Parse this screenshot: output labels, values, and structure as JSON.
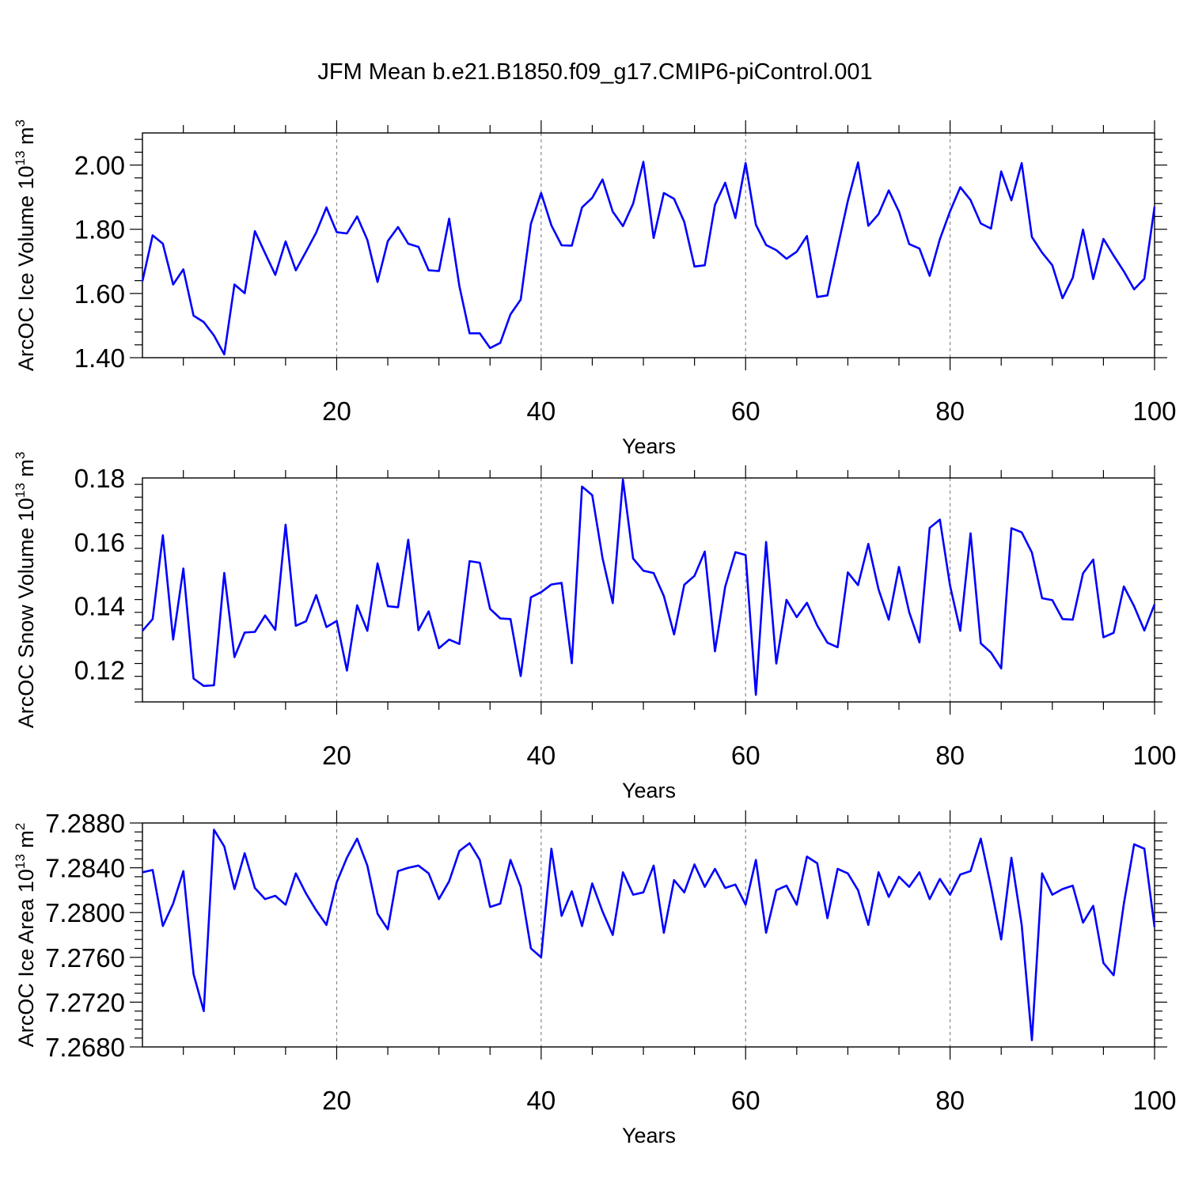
{
  "figure": {
    "title": "JFM Mean b.e21.B1850.f09_g17.CMIP6-piControl.001",
    "line_color": "#0000ff"
  },
  "chart_data": [
    {
      "type": "line",
      "title": "",
      "xlabel": "Years",
      "ylabel": "ArcOC Ice Volume 10",
      "ylabel_exp": "13",
      "ylabel_unit": " m",
      "ylabel_unit_exp": "3",
      "xlim": [
        1,
        100
      ],
      "ylim": [
        1.4,
        2.1
      ],
      "xticks": [
        20,
        40,
        60,
        80,
        100
      ],
      "yticks": [
        1.4,
        1.6,
        1.8,
        2.0
      ],
      "ytick_labels": [
        "1.40",
        "1.60",
        "1.80",
        "2.00"
      ],
      "grid": "vertical dashed at major x ticks",
      "series": [
        {
          "values": [
            1.638,
            1.781,
            1.755,
            1.628,
            1.675,
            1.531,
            1.511,
            1.469,
            1.41,
            1.628,
            1.601,
            1.794,
            1.725,
            1.658,
            1.762,
            1.672,
            1.73,
            1.79,
            1.868,
            1.791,
            1.787,
            1.84,
            1.767,
            1.636,
            1.763,
            1.807,
            1.755,
            1.745,
            1.672,
            1.67,
            1.833,
            1.623,
            1.476,
            1.476,
            1.43,
            1.446,
            1.535,
            1.581,
            1.817,
            1.913,
            1.812,
            1.75,
            1.749,
            1.868,
            1.898,
            1.955,
            1.855,
            1.81,
            1.88,
            2.01,
            1.773,
            1.913,
            1.895,
            1.823,
            1.684,
            1.688,
            1.876,
            1.945,
            1.835,
            2.006,
            1.814,
            1.751,
            1.735,
            1.708,
            1.73,
            1.779,
            1.589,
            1.594,
            1.743,
            1.888,
            2.008,
            1.811,
            1.847,
            1.921,
            1.855,
            1.754,
            1.74,
            1.655,
            1.769,
            1.856,
            1.931,
            1.891,
            1.818,
            1.802,
            1.98,
            1.89,
            2.006,
            1.776,
            1.727,
            1.688,
            1.585,
            1.649,
            1.799,
            1.645,
            1.77,
            1.718,
            1.669,
            1.613,
            1.646,
            1.87
          ]
        }
      ]
    },
    {
      "type": "line",
      "title": "",
      "xlabel": "Years",
      "ylabel": "ArcOC Snow Volume 10",
      "ylabel_exp": "13",
      "ylabel_unit": " m",
      "ylabel_unit_exp": "3",
      "xlim": [
        1,
        100
      ],
      "ylim": [
        0.11,
        0.18
      ],
      "xticks": [
        20,
        40,
        60,
        80,
        100
      ],
      "yticks": [
        0.12,
        0.14,
        0.16,
        0.18
      ],
      "ytick_labels": [
        "0.12",
        "0.14",
        "0.16",
        "0.18"
      ],
      "grid": "vertical dashed at major x ticks",
      "series": [
        {
          "values": [
            0.1322,
            0.1359,
            0.1621,
            0.1295,
            0.1517,
            0.1173,
            0.115,
            0.1152,
            0.1503,
            0.124,
            0.1317,
            0.1319,
            0.137,
            0.1325,
            0.1654,
            0.1338,
            0.1352,
            0.1434,
            0.1334,
            0.1353,
            0.1198,
            0.1402,
            0.1322,
            0.1533,
            0.1399,
            0.1396,
            0.1607,
            0.1324,
            0.1383,
            0.1268,
            0.1295,
            0.1281,
            0.154,
            0.1535,
            0.1391,
            0.1361,
            0.1359,
            0.1181,
            0.1427,
            0.1443,
            0.1467,
            0.1472,
            0.1221,
            0.1773,
            0.1746,
            0.155,
            0.1409,
            0.1795,
            0.1548,
            0.151,
            0.1503,
            0.1431,
            0.1311,
            0.1466,
            0.1494,
            0.157,
            0.1258,
            0.146,
            0.1568,
            0.1559,
            0.1122,
            0.16,
            0.122,
            0.1419,
            0.1365,
            0.141,
            0.1339,
            0.1285,
            0.1271,
            0.1505,
            0.1465,
            0.1594,
            0.1452,
            0.1357,
            0.1522,
            0.1381,
            0.1286,
            0.1644,
            0.167,
            0.1463,
            0.1322,
            0.1627,
            0.1283,
            0.1254,
            0.1205,
            0.1643,
            0.163,
            0.1567,
            0.1424,
            0.1418,
            0.1359,
            0.1357,
            0.1502,
            0.1545,
            0.1302,
            0.1316,
            0.1461,
            0.1399,
            0.1323,
            0.1405
          ]
        }
      ]
    },
    {
      "type": "line",
      "title": "",
      "xlabel": "Years",
      "ylabel": "ArcOC Ice Area 10",
      "ylabel_exp": "13",
      "ylabel_unit": " m",
      "ylabel_unit_exp": "2",
      "xlim": [
        1,
        100
      ],
      "ylim": [
        7.268,
        7.288
      ],
      "xticks": [
        20,
        40,
        60,
        80,
        100
      ],
      "yticks": [
        7.268,
        7.272,
        7.276,
        7.28,
        7.284,
        7.288
      ],
      "ytick_labels": [
        "7.2680",
        "7.2720",
        "7.2760",
        "7.2800",
        "7.2840",
        "7.2880"
      ],
      "grid": "vertical dashed at major x ticks",
      "series": [
        {
          "values": [
            7.2836,
            7.2838,
            7.2788,
            7.2808,
            7.2837,
            7.2745,
            7.2712,
            7.2874,
            7.2859,
            7.2821,
            7.2853,
            7.2822,
            7.2812,
            7.2815,
            7.2807,
            7.2835,
            7.2817,
            7.2802,
            7.2789,
            7.2827,
            7.2849,
            7.2866,
            7.2842,
            7.2799,
            7.2785,
            7.2837,
            7.284,
            7.2842,
            7.2835,
            7.2812,
            7.2828,
            7.2855,
            7.2862,
            7.2847,
            7.2805,
            7.2808,
            7.2847,
            7.2823,
            7.2768,
            7.276,
            7.2857,
            7.2797,
            7.2819,
            7.2788,
            7.2826,
            7.2801,
            7.278,
            7.2836,
            7.2816,
            7.2818,
            7.2842,
            7.2782,
            7.2829,
            7.2818,
            7.2843,
            7.2823,
            7.2839,
            7.2822,
            7.2825,
            7.2807,
            7.2847,
            7.2782,
            7.282,
            7.2824,
            7.2807,
            7.285,
            7.2844,
            7.2795,
            7.2839,
            7.2835,
            7.282,
            7.2789,
            7.2836,
            7.2814,
            7.2832,
            7.2823,
            7.2836,
            7.2812,
            7.283,
            7.2816,
            7.2834,
            7.2837,
            7.2866,
            7.2823,
            7.2776,
            7.2849,
            7.2789,
            7.2686,
            7.2835,
            7.2816,
            7.2821,
            7.2824,
            7.2791,
            7.2806,
            7.2755,
            7.2744,
            7.2808,
            7.2861,
            7.2857,
            7.2787
          ]
        }
      ]
    }
  ]
}
